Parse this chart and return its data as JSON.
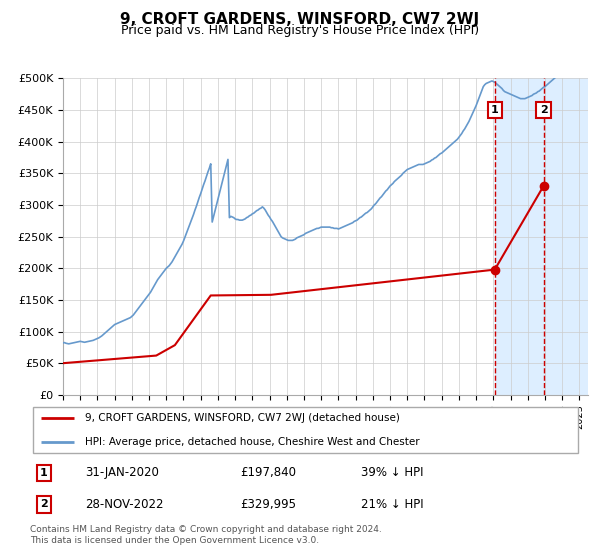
{
  "title": "9, CROFT GARDENS, WINSFORD, CW7 2WJ",
  "subtitle": "Price paid vs. HM Land Registry's House Price Index (HPI)",
  "ylabel_ticks": [
    "£0",
    "£50K",
    "£100K",
    "£150K",
    "£200K",
    "£250K",
    "£300K",
    "£350K",
    "£400K",
    "£450K",
    "£500K"
  ],
  "ytick_values": [
    0,
    50000,
    100000,
    150000,
    200000,
    250000,
    300000,
    350000,
    400000,
    450000,
    500000
  ],
  "ylim": [
    0,
    500000
  ],
  "xlim_start": 1995.0,
  "xlim_end": 2025.5,
  "background_color": "#ffffff",
  "plot_bg_color": "#ffffff",
  "grid_color": "#cccccc",
  "hpi_color": "#6699cc",
  "price_color": "#cc0000",
  "marker1_x": 2020.083,
  "marker1_y": 197840,
  "marker2_x": 2022.917,
  "marker2_y": 329995,
  "marker1_label": "1",
  "marker2_label": "2",
  "marker1_date": "31-JAN-2020",
  "marker1_price": "£197,840",
  "marker1_hpi": "39% ↓ HPI",
  "marker2_date": "28-NOV-2022",
  "marker2_price": "£329,995",
  "marker2_hpi": "21% ↓ HPI",
  "legend_line1": "9, CROFT GARDENS, WINSFORD, CW7 2WJ (detached house)",
  "legend_line2": "HPI: Average price, detached house, Cheshire West and Chester",
  "footer": "Contains HM Land Registry data © Crown copyright and database right 2024.\nThis data is licensed under the Open Government Licence v3.0.",
  "price_data_x": [
    1995.0,
    2000.417,
    2001.5,
    2003.583,
    2007.083,
    2020.083,
    2022.917
  ],
  "price_data_y": [
    49950,
    62000,
    78500,
    157000,
    158000,
    197840,
    329995
  ],
  "shade_start": 2020.083,
  "shade_end": 2025.5,
  "shade_color": "#ddeeff"
}
